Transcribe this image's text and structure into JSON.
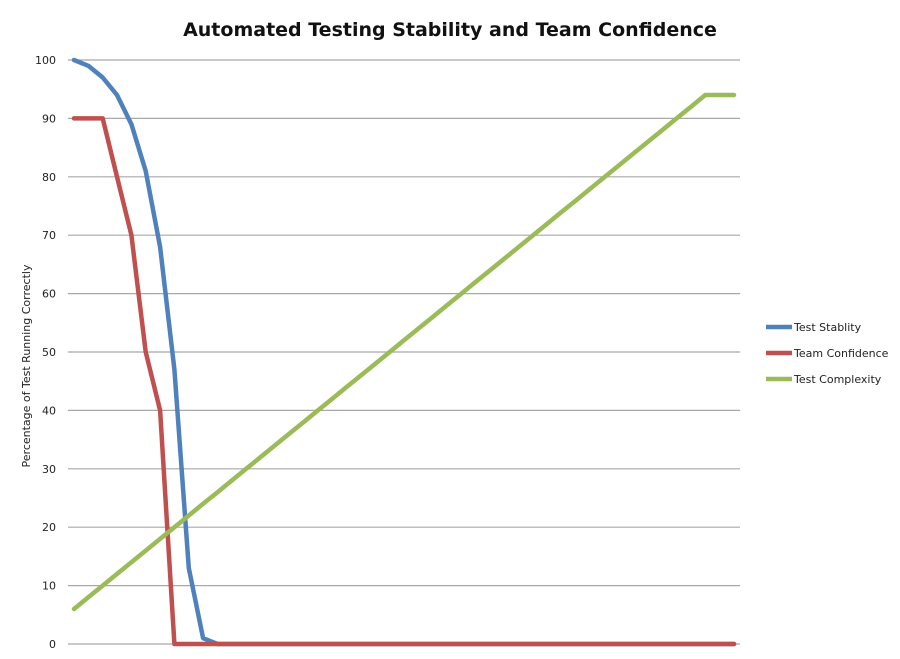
{
  "chart_data": {
    "type": "line",
    "title": "Automated Testing Stability and Team Confidence",
    "xlabel": "",
    "ylabel": "Percentage of Test Running Correctly",
    "ylim": [
      0,
      100
    ],
    "yticks": [
      0,
      10,
      20,
      30,
      40,
      50,
      60,
      70,
      80,
      90,
      100
    ],
    "xlim": [
      0,
      46
    ],
    "grid": true,
    "legend_position": "right",
    "series": [
      {
        "name": "Test Stablity",
        "color": "#4f81bd",
        "x": [
          0,
          1,
          2,
          3,
          4,
          5,
          6,
          7,
          8,
          9,
          10,
          11,
          12,
          46
        ],
        "values": [
          100,
          99,
          97,
          94,
          89,
          81,
          68,
          47,
          13,
          1,
          0,
          0,
          0,
          0
        ]
      },
      {
        "name": "Team Confidence",
        "color": "#c0504d",
        "x": [
          0,
          1,
          2,
          3,
          4,
          5,
          6,
          7,
          46
        ],
        "values": [
          90,
          90,
          90,
          80,
          70,
          50,
          40,
          0,
          0
        ]
      },
      {
        "name": "Test Complexity",
        "color": "#9bbb59",
        "x": [
          0,
          1,
          2,
          3,
          4,
          5,
          6,
          7,
          8,
          9,
          10,
          11,
          12,
          13,
          14,
          15,
          16,
          17,
          18,
          19,
          20,
          21,
          22,
          23,
          24,
          25,
          26,
          27,
          28,
          29,
          30,
          31,
          32,
          33,
          34,
          35,
          36,
          37,
          38,
          39,
          40,
          41,
          42,
          43,
          44,
          45,
          46
        ],
        "values": [
          6,
          8,
          10,
          12,
          14,
          16,
          18,
          20,
          22,
          24,
          26,
          28,
          30,
          32,
          34,
          36,
          38,
          40,
          42,
          44,
          46,
          48,
          50,
          52,
          54,
          56,
          58,
          60,
          62,
          64,
          66,
          68,
          70,
          72,
          74,
          76,
          78,
          80,
          82,
          84,
          86,
          88,
          90,
          92,
          94,
          94,
          94
        ]
      }
    ]
  }
}
